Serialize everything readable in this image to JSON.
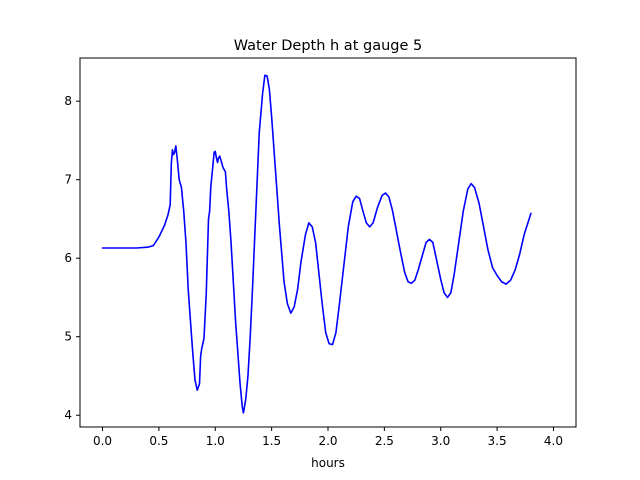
{
  "chart_data": {
    "type": "line",
    "title": "Water Depth h at gauge 5",
    "xlabel": "hours",
    "ylabel": "",
    "xlim": [
      -0.2,
      4.2
    ],
    "ylim": [
      3.85,
      8.55
    ],
    "x_ticks": [
      0.0,
      0.5,
      1.0,
      1.5,
      2.0,
      2.5,
      3.0,
      3.5,
      4.0
    ],
    "x_tick_labels": [
      "0.0",
      "0.5",
      "1.0",
      "1.5",
      "2.0",
      "2.5",
      "3.0",
      "3.5",
      "4.0"
    ],
    "y_ticks": [
      4,
      5,
      6,
      7,
      8
    ],
    "y_tick_labels": [
      "4",
      "5",
      "6",
      "7",
      "8"
    ],
    "grid": false,
    "series": [
      {
        "color": "#0000ff",
        "points": [
          [
            0.0,
            6.13
          ],
          [
            0.1,
            6.13
          ],
          [
            0.2,
            6.13
          ],
          [
            0.3,
            6.13
          ],
          [
            0.4,
            6.14
          ],
          [
            0.45,
            6.16
          ],
          [
            0.5,
            6.27
          ],
          [
            0.55,
            6.42
          ],
          [
            0.58,
            6.55
          ],
          [
            0.6,
            6.68
          ],
          [
            0.61,
            7.2
          ],
          [
            0.62,
            7.38
          ],
          [
            0.63,
            7.32
          ],
          [
            0.64,
            7.35
          ],
          [
            0.65,
            7.43
          ],
          [
            0.66,
            7.3
          ],
          [
            0.68,
            7.0
          ],
          [
            0.7,
            6.9
          ],
          [
            0.72,
            6.6
          ],
          [
            0.74,
            6.2
          ],
          [
            0.76,
            5.6
          ],
          [
            0.78,
            5.2
          ],
          [
            0.8,
            4.8
          ],
          [
            0.82,
            4.45
          ],
          [
            0.84,
            4.32
          ],
          [
            0.86,
            4.4
          ],
          [
            0.87,
            4.75
          ],
          [
            0.88,
            4.85
          ],
          [
            0.9,
            4.98
          ],
          [
            0.92,
            5.55
          ],
          [
            0.94,
            6.5
          ],
          [
            0.95,
            6.6
          ],
          [
            0.96,
            6.9
          ],
          [
            0.98,
            7.2
          ],
          [
            0.99,
            7.35
          ],
          [
            1.0,
            7.36
          ],
          [
            1.01,
            7.28
          ],
          [
            1.02,
            7.22
          ],
          [
            1.03,
            7.28
          ],
          [
            1.04,
            7.3
          ],
          [
            1.05,
            7.25
          ],
          [
            1.07,
            7.15
          ],
          [
            1.09,
            7.1
          ],
          [
            1.1,
            6.9
          ],
          [
            1.12,
            6.6
          ],
          [
            1.14,
            6.2
          ],
          [
            1.16,
            5.7
          ],
          [
            1.18,
            5.2
          ],
          [
            1.2,
            4.8
          ],
          [
            1.22,
            4.4
          ],
          [
            1.24,
            4.1
          ],
          [
            1.25,
            4.03
          ],
          [
            1.27,
            4.2
          ],
          [
            1.29,
            4.5
          ],
          [
            1.31,
            5.0
          ],
          [
            1.33,
            5.6
          ],
          [
            1.36,
            6.6
          ],
          [
            1.39,
            7.6
          ],
          [
            1.42,
            8.1
          ],
          [
            1.44,
            8.33
          ],
          [
            1.46,
            8.32
          ],
          [
            1.48,
            8.15
          ],
          [
            1.5,
            7.8
          ],
          [
            1.53,
            7.2
          ],
          [
            1.57,
            6.4
          ],
          [
            1.61,
            5.7
          ],
          [
            1.64,
            5.42
          ],
          [
            1.67,
            5.3
          ],
          [
            1.7,
            5.38
          ],
          [
            1.73,
            5.6
          ],
          [
            1.76,
            5.95
          ],
          [
            1.8,
            6.3
          ],
          [
            1.83,
            6.45
          ],
          [
            1.86,
            6.4
          ],
          [
            1.89,
            6.2
          ],
          [
            1.92,
            5.8
          ],
          [
            1.95,
            5.4
          ],
          [
            1.98,
            5.05
          ],
          [
            2.01,
            4.91
          ],
          [
            2.04,
            4.9
          ],
          [
            2.07,
            5.05
          ],
          [
            2.1,
            5.4
          ],
          [
            2.14,
            5.9
          ],
          [
            2.18,
            6.4
          ],
          [
            2.22,
            6.72
          ],
          [
            2.25,
            6.79
          ],
          [
            2.28,
            6.76
          ],
          [
            2.31,
            6.6
          ],
          [
            2.34,
            6.45
          ],
          [
            2.37,
            6.4
          ],
          [
            2.4,
            6.45
          ],
          [
            2.44,
            6.65
          ],
          [
            2.48,
            6.8
          ],
          [
            2.51,
            6.83
          ],
          [
            2.54,
            6.78
          ],
          [
            2.57,
            6.62
          ],
          [
            2.6,
            6.4
          ],
          [
            2.64,
            6.1
          ],
          [
            2.68,
            5.82
          ],
          [
            2.71,
            5.7
          ],
          [
            2.74,
            5.68
          ],
          [
            2.77,
            5.72
          ],
          [
            2.8,
            5.85
          ],
          [
            2.84,
            6.05
          ],
          [
            2.87,
            6.2
          ],
          [
            2.9,
            6.24
          ],
          [
            2.93,
            6.2
          ],
          [
            2.96,
            6.0
          ],
          [
            3.0,
            5.73
          ],
          [
            3.03,
            5.56
          ],
          [
            3.06,
            5.5
          ],
          [
            3.09,
            5.56
          ],
          [
            3.12,
            5.8
          ],
          [
            3.16,
            6.2
          ],
          [
            3.2,
            6.6
          ],
          [
            3.24,
            6.88
          ],
          [
            3.27,
            6.95
          ],
          [
            3.3,
            6.9
          ],
          [
            3.34,
            6.7
          ],
          [
            3.38,
            6.4
          ],
          [
            3.42,
            6.1
          ],
          [
            3.46,
            5.88
          ],
          [
            3.5,
            5.78
          ],
          [
            3.54,
            5.7
          ],
          [
            3.58,
            5.67
          ],
          [
            3.62,
            5.72
          ],
          [
            3.66,
            5.85
          ],
          [
            3.7,
            6.05
          ],
          [
            3.74,
            6.3
          ],
          [
            3.78,
            6.48
          ],
          [
            3.8,
            6.57
          ]
        ]
      }
    ]
  }
}
